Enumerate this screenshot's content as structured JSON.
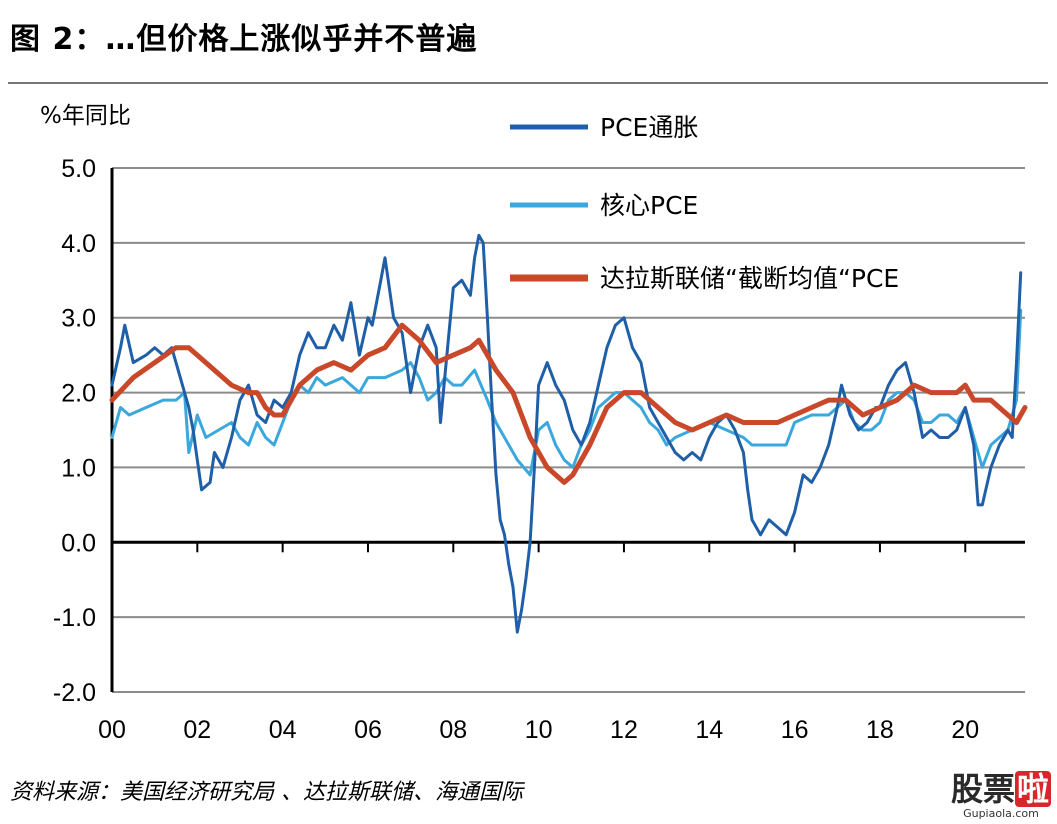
{
  "title": "图 2：…但价格上涨似乎并不普遍",
  "source": "资料来源：美国经济研究局 、达拉斯联储、海通国际",
  "watermark": {
    "main": "股票",
    "badge": "啦",
    "sub": "Gupiaola.com"
  },
  "colors": {
    "pce": "#1f5fa8",
    "core": "#3aa7dd",
    "trimmed": "#c9482a",
    "grid": "#8c8c8c"
  },
  "chart_data": {
    "type": "line",
    "ylabel": "%年同比",
    "ylim": [
      -2.0,
      5.0
    ],
    "yticks": [
      "-2.0",
      "-1.0",
      "0.0",
      "1.0",
      "2.0",
      "3.0",
      "4.0",
      "5.0"
    ],
    "xlim": [
      2000,
      2021.4
    ],
    "xticks": [
      "00",
      "02",
      "04",
      "06",
      "08",
      "10",
      "12",
      "14",
      "16",
      "18",
      "20"
    ],
    "legend_position": "top-right",
    "grid": true,
    "series": [
      {
        "name": "PCE通胀",
        "key": "pce",
        "points": [
          [
            2000.0,
            2.1
          ],
          [
            2000.2,
            2.6
          ],
          [
            2000.3,
            2.9
          ],
          [
            2000.5,
            2.4
          ],
          [
            2000.8,
            2.5
          ],
          [
            2001.0,
            2.6
          ],
          [
            2001.2,
            2.5
          ],
          [
            2001.4,
            2.6
          ],
          [
            2001.6,
            2.2
          ],
          [
            2001.8,
            1.8
          ],
          [
            2001.9,
            1.5
          ],
          [
            2002.0,
            1.1
          ],
          [
            2002.1,
            0.7
          ],
          [
            2002.3,
            0.8
          ],
          [
            2002.4,
            1.2
          ],
          [
            2002.6,
            1.0
          ],
          [
            2002.8,
            1.4
          ],
          [
            2003.0,
            1.9
          ],
          [
            2003.2,
            2.1
          ],
          [
            2003.4,
            1.7
          ],
          [
            2003.6,
            1.6
          ],
          [
            2003.8,
            1.9
          ],
          [
            2004.0,
            1.8
          ],
          [
            2004.2,
            2.0
          ],
          [
            2004.4,
            2.5
          ],
          [
            2004.6,
            2.8
          ],
          [
            2004.8,
            2.6
          ],
          [
            2005.0,
            2.6
          ],
          [
            2005.2,
            2.9
          ],
          [
            2005.4,
            2.7
          ],
          [
            2005.6,
            3.2
          ],
          [
            2005.8,
            2.5
          ],
          [
            2006.0,
            3.0
          ],
          [
            2006.1,
            2.9
          ],
          [
            2006.3,
            3.5
          ],
          [
            2006.4,
            3.8
          ],
          [
            2006.6,
            3.0
          ],
          [
            2006.8,
            2.8
          ],
          [
            2007.0,
            2.0
          ],
          [
            2007.2,
            2.6
          ],
          [
            2007.4,
            2.9
          ],
          [
            2007.6,
            2.6
          ],
          [
            2007.7,
            1.6
          ],
          [
            2007.9,
            2.8
          ],
          [
            2008.0,
            3.4
          ],
          [
            2008.2,
            3.5
          ],
          [
            2008.4,
            3.3
          ],
          [
            2008.5,
            3.8
          ],
          [
            2008.6,
            4.1
          ],
          [
            2008.7,
            4.0
          ],
          [
            2008.8,
            3.0
          ],
          [
            2008.9,
            1.9
          ],
          [
            2009.0,
            0.9
          ],
          [
            2009.1,
            0.3
          ],
          [
            2009.2,
            0.1
          ],
          [
            2009.3,
            -0.3
          ],
          [
            2009.4,
            -0.6
          ],
          [
            2009.5,
            -1.2
          ],
          [
            2009.6,
            -0.9
          ],
          [
            2009.7,
            -0.5
          ],
          [
            2009.8,
            0.0
          ],
          [
            2009.9,
            1.0
          ],
          [
            2010.0,
            2.1
          ],
          [
            2010.2,
            2.4
          ],
          [
            2010.4,
            2.1
          ],
          [
            2010.6,
            1.9
          ],
          [
            2010.8,
            1.5
          ],
          [
            2011.0,
            1.3
          ],
          [
            2011.2,
            1.6
          ],
          [
            2011.4,
            2.1
          ],
          [
            2011.6,
            2.6
          ],
          [
            2011.8,
            2.9
          ],
          [
            2012.0,
            3.0
          ],
          [
            2012.2,
            2.6
          ],
          [
            2012.4,
            2.4
          ],
          [
            2012.6,
            1.8
          ],
          [
            2012.8,
            1.6
          ],
          [
            2013.0,
            1.4
          ],
          [
            2013.2,
            1.2
          ],
          [
            2013.4,
            1.1
          ],
          [
            2013.6,
            1.2
          ],
          [
            2013.8,
            1.1
          ],
          [
            2014.0,
            1.4
          ],
          [
            2014.2,
            1.6
          ],
          [
            2014.4,
            1.7
          ],
          [
            2014.6,
            1.5
          ],
          [
            2014.8,
            1.2
          ],
          [
            2014.9,
            0.7
          ],
          [
            2015.0,
            0.3
          ],
          [
            2015.2,
            0.1
          ],
          [
            2015.4,
            0.3
          ],
          [
            2015.6,
            0.2
          ],
          [
            2015.8,
            0.1
          ],
          [
            2016.0,
            0.4
          ],
          [
            2016.2,
            0.9
          ],
          [
            2016.4,
            0.8
          ],
          [
            2016.6,
            1.0
          ],
          [
            2016.8,
            1.3
          ],
          [
            2017.0,
            1.8
          ],
          [
            2017.1,
            2.1
          ],
          [
            2017.3,
            1.7
          ],
          [
            2017.5,
            1.5
          ],
          [
            2017.7,
            1.6
          ],
          [
            2017.9,
            1.8
          ],
          [
            2018.0,
            1.8
          ],
          [
            2018.2,
            2.1
          ],
          [
            2018.4,
            2.3
          ],
          [
            2018.6,
            2.4
          ],
          [
            2018.8,
            2.0
          ],
          [
            2019.0,
            1.4
          ],
          [
            2019.2,
            1.5
          ],
          [
            2019.4,
            1.4
          ],
          [
            2019.6,
            1.4
          ],
          [
            2019.8,
            1.5
          ],
          [
            2020.0,
            1.8
          ],
          [
            2020.2,
            1.3
          ],
          [
            2020.3,
            0.5
          ],
          [
            2020.4,
            0.5
          ],
          [
            2020.6,
            1.0
          ],
          [
            2020.8,
            1.3
          ],
          [
            2021.0,
            1.5
          ],
          [
            2021.1,
            1.4
          ],
          [
            2021.2,
            2.4
          ],
          [
            2021.3,
            3.6
          ]
        ]
      },
      {
        "name": "核心PCE",
        "key": "core",
        "points": [
          [
            2000.0,
            1.4
          ],
          [
            2000.2,
            1.8
          ],
          [
            2000.4,
            1.7
          ],
          [
            2000.8,
            1.8
          ],
          [
            2001.2,
            1.9
          ],
          [
            2001.5,
            1.9
          ],
          [
            2001.7,
            2.0
          ],
          [
            2001.8,
            1.2
          ],
          [
            2002.0,
            1.7
          ],
          [
            2002.2,
            1.4
          ],
          [
            2002.5,
            1.5
          ],
          [
            2002.8,
            1.6
          ],
          [
            2003.0,
            1.4
          ],
          [
            2003.2,
            1.3
          ],
          [
            2003.4,
            1.6
          ],
          [
            2003.6,
            1.4
          ],
          [
            2003.8,
            1.3
          ],
          [
            2004.0,
            1.6
          ],
          [
            2004.2,
            1.9
          ],
          [
            2004.4,
            2.1
          ],
          [
            2004.6,
            2.0
          ],
          [
            2004.8,
            2.2
          ],
          [
            2005.0,
            2.1
          ],
          [
            2005.4,
            2.2
          ],
          [
            2005.8,
            2.0
          ],
          [
            2006.0,
            2.2
          ],
          [
            2006.4,
            2.2
          ],
          [
            2006.8,
            2.3
          ],
          [
            2007.0,
            2.4
          ],
          [
            2007.2,
            2.2
          ],
          [
            2007.4,
            1.9
          ],
          [
            2007.6,
            2.0
          ],
          [
            2007.8,
            2.2
          ],
          [
            2008.0,
            2.1
          ],
          [
            2008.2,
            2.1
          ],
          [
            2008.5,
            2.3
          ],
          [
            2008.8,
            1.9
          ],
          [
            2009.0,
            1.6
          ],
          [
            2009.2,
            1.4
          ],
          [
            2009.5,
            1.1
          ],
          [
            2009.8,
            0.9
          ],
          [
            2010.0,
            1.5
          ],
          [
            2010.2,
            1.6
          ],
          [
            2010.4,
            1.3
          ],
          [
            2010.6,
            1.1
          ],
          [
            2010.8,
            1.0
          ],
          [
            2011.0,
            1.3
          ],
          [
            2011.2,
            1.5
          ],
          [
            2011.4,
            1.8
          ],
          [
            2011.6,
            1.9
          ],
          [
            2011.8,
            2.0
          ],
          [
            2012.0,
            2.0
          ],
          [
            2012.2,
            1.9
          ],
          [
            2012.4,
            1.8
          ],
          [
            2012.6,
            1.6
          ],
          [
            2012.8,
            1.5
          ],
          [
            2013.0,
            1.3
          ],
          [
            2013.2,
            1.4
          ],
          [
            2013.6,
            1.5
          ],
          [
            2014.0,
            1.6
          ],
          [
            2014.4,
            1.5
          ],
          [
            2014.8,
            1.4
          ],
          [
            2015.0,
            1.3
          ],
          [
            2015.4,
            1.3
          ],
          [
            2015.8,
            1.3
          ],
          [
            2016.0,
            1.6
          ],
          [
            2016.4,
            1.7
          ],
          [
            2016.8,
            1.7
          ],
          [
            2017.0,
            1.8
          ],
          [
            2017.2,
            1.9
          ],
          [
            2017.4,
            1.6
          ],
          [
            2017.6,
            1.5
          ],
          [
            2017.8,
            1.5
          ],
          [
            2018.0,
            1.6
          ],
          [
            2018.2,
            1.9
          ],
          [
            2018.4,
            2.0
          ],
          [
            2018.6,
            2.0
          ],
          [
            2018.8,
            1.9
          ],
          [
            2019.0,
            1.6
          ],
          [
            2019.2,
            1.6
          ],
          [
            2019.4,
            1.7
          ],
          [
            2019.6,
            1.7
          ],
          [
            2019.8,
            1.6
          ],
          [
            2020.0,
            1.8
          ],
          [
            2020.2,
            1.4
          ],
          [
            2020.4,
            1.0
          ],
          [
            2020.6,
            1.3
          ],
          [
            2020.8,
            1.4
          ],
          [
            2021.0,
            1.5
          ],
          [
            2021.2,
            1.9
          ],
          [
            2021.3,
            3.1
          ]
        ]
      },
      {
        "name": "达拉斯联储“截断均值“PCE",
        "key": "trimmed",
        "points": [
          [
            2000.0,
            1.9
          ],
          [
            2000.5,
            2.2
          ],
          [
            2001.0,
            2.4
          ],
          [
            2001.5,
            2.6
          ],
          [
            2001.8,
            2.6
          ],
          [
            2002.0,
            2.5
          ],
          [
            2002.4,
            2.3
          ],
          [
            2002.8,
            2.1
          ],
          [
            2003.2,
            2.0
          ],
          [
            2003.4,
            2.0
          ],
          [
            2003.6,
            1.8
          ],
          [
            2003.8,
            1.7
          ],
          [
            2004.0,
            1.7
          ],
          [
            2004.2,
            1.9
          ],
          [
            2004.4,
            2.1
          ],
          [
            2004.8,
            2.3
          ],
          [
            2005.2,
            2.4
          ],
          [
            2005.6,
            2.3
          ],
          [
            2006.0,
            2.5
          ],
          [
            2006.4,
            2.6
          ],
          [
            2006.8,
            2.9
          ],
          [
            2007.2,
            2.7
          ],
          [
            2007.6,
            2.4
          ],
          [
            2008.0,
            2.5
          ],
          [
            2008.4,
            2.6
          ],
          [
            2008.6,
            2.7
          ],
          [
            2009.0,
            2.3
          ],
          [
            2009.4,
            2.0
          ],
          [
            2009.8,
            1.4
          ],
          [
            2010.2,
            1.0
          ],
          [
            2010.6,
            0.8
          ],
          [
            2010.8,
            0.9
          ],
          [
            2011.2,
            1.3
          ],
          [
            2011.6,
            1.8
          ],
          [
            2012.0,
            2.0
          ],
          [
            2012.4,
            2.0
          ],
          [
            2012.8,
            1.8
          ],
          [
            2013.2,
            1.6
          ],
          [
            2013.6,
            1.5
          ],
          [
            2014.0,
            1.6
          ],
          [
            2014.4,
            1.7
          ],
          [
            2014.8,
            1.6
          ],
          [
            2015.2,
            1.6
          ],
          [
            2015.6,
            1.6
          ],
          [
            2016.0,
            1.7
          ],
          [
            2016.4,
            1.8
          ],
          [
            2016.8,
            1.9
          ],
          [
            2017.2,
            1.9
          ],
          [
            2017.6,
            1.7
          ],
          [
            2018.0,
            1.8
          ],
          [
            2018.4,
            1.9
          ],
          [
            2018.8,
            2.1
          ],
          [
            2019.2,
            2.0
          ],
          [
            2019.6,
            2.0
          ],
          [
            2019.8,
            2.0
          ],
          [
            2020.0,
            2.1
          ],
          [
            2020.2,
            1.9
          ],
          [
            2020.6,
            1.9
          ],
          [
            2021.0,
            1.7
          ],
          [
            2021.2,
            1.6
          ],
          [
            2021.4,
            1.8
          ]
        ]
      }
    ]
  }
}
